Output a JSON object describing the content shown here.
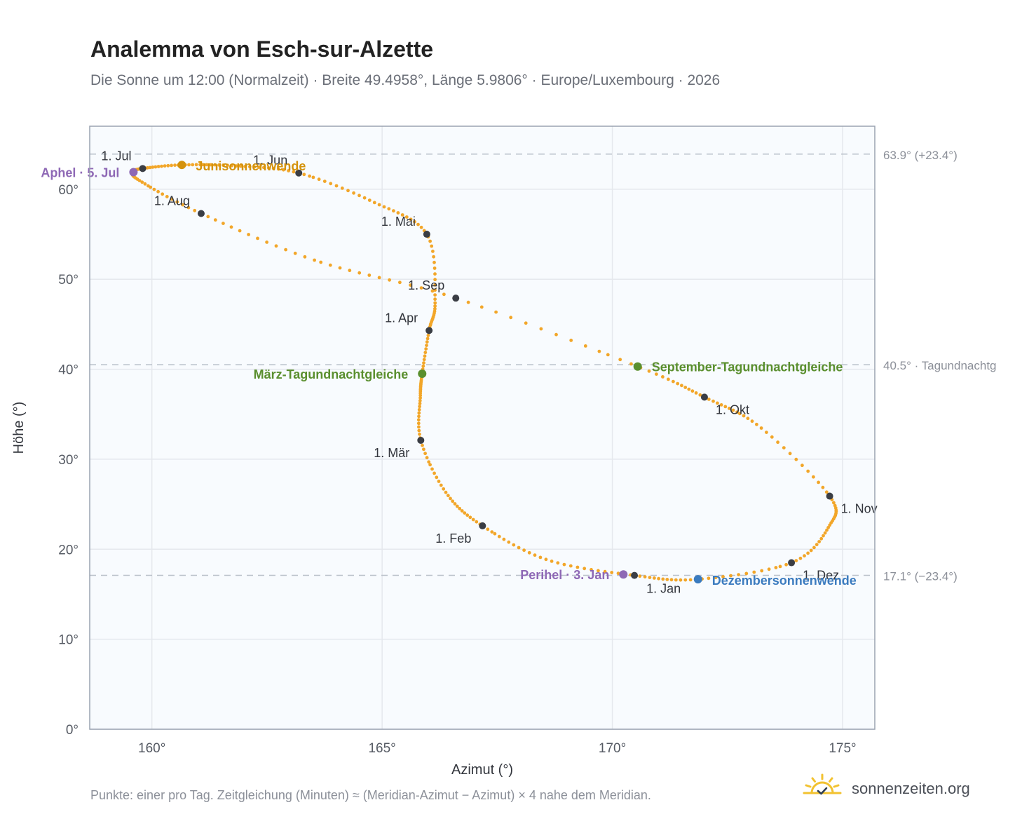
{
  "header": {
    "title": "Analemma von Esch-sur-Alzette",
    "subtitle": "Die Sonne um 12:00 (Normalzeit) · Breite 49.4958°, Länge 5.9806° · Europe/Luxembourg · 2026"
  },
  "footer": {
    "note": "Punkte: einer pro Tag. Zeitgleichung (Minuten) ≈ (Meridian-Azimut − Azimut) × 4 nahe dem Meridian.",
    "brand": "sonnenzeiten.org",
    "brand_icon": "sun-check-icon"
  },
  "colors": {
    "curve": "#f2a629",
    "month_point": "#3a3d44",
    "equinox": "#5a8f2e",
    "june_solstice": "#d4920c",
    "december_solstice": "#3b7bbf",
    "apsis": "#8e68b5",
    "grid": "#e5e8ed",
    "plot_bg": "#f8fbfe",
    "frame": "#9aa3b0",
    "ref_line": "#b9c0c9"
  },
  "chart_data": {
    "type": "scatter",
    "xlabel": "Azimut (°)",
    "ylabel": "Höhe (°)",
    "xlim": [
      158.65,
      175.7
    ],
    "ylim": [
      0,
      67
    ],
    "xticks": [
      {
        "value": 160,
        "label": "160°"
      },
      {
        "value": 165,
        "label": "165°"
      },
      {
        "value": 170,
        "label": "170°"
      },
      {
        "value": 175,
        "label": "175°"
      }
    ],
    "yticks": [
      {
        "value": 0,
        "label": "0°"
      },
      {
        "value": 10,
        "label": "10°"
      },
      {
        "value": 20,
        "label": "20°"
      },
      {
        "value": 30,
        "label": "30°"
      },
      {
        "value": 40,
        "label": "40°"
      },
      {
        "value": 50,
        "label": "50°"
      },
      {
        "value": 60,
        "label": "60°"
      }
    ],
    "grid": true,
    "reference_lines": [
      {
        "y": 63.9,
        "label": "63.9° (+23.4°)"
      },
      {
        "y": 40.5,
        "label": "40.5° · Tagundnachtg"
      },
      {
        "y": 17.1,
        "label": "17.1° (−23.4°)"
      }
    ],
    "path_anchors": [
      {
        "x": 170.48,
        "y": 17.09
      },
      {
        "x": 168.6,
        "y": 18.8
      },
      {
        "x": 167.18,
        "y": 22.6
      },
      {
        "x": 166.4,
        "y": 26.2
      },
      {
        "x": 165.84,
        "y": 32.1
      },
      {
        "x": 165.83,
        "y": 37.0
      },
      {
        "x": 165.87,
        "y": 39.5
      },
      {
        "x": 166.02,
        "y": 44.3
      },
      {
        "x": 166.15,
        "y": 47.5
      },
      {
        "x": 165.97,
        "y": 55.0
      },
      {
        "x": 164.8,
        "y": 58.6
      },
      {
        "x": 163.19,
        "y": 61.8
      },
      {
        "x": 161.8,
        "y": 62.6
      },
      {
        "x": 160.65,
        "y": 62.7
      },
      {
        "x": 159.8,
        "y": 62.3
      },
      {
        "x": 159.6,
        "y": 61.9
      },
      {
        "x": 159.75,
        "y": 60.9
      },
      {
        "x": 161.07,
        "y": 57.3
      },
      {
        "x": 163.6,
        "y": 52.0
      },
      {
        "x": 166.6,
        "y": 47.9
      },
      {
        "x": 170.55,
        "y": 40.3
      },
      {
        "x": 172.0,
        "y": 36.9
      },
      {
        "x": 173.2,
        "y": 33.6
      },
      {
        "x": 174.72,
        "y": 25.9
      },
      {
        "x": 174.7,
        "y": 22.5
      },
      {
        "x": 173.89,
        "y": 18.5
      },
      {
        "x": 171.86,
        "y": 16.66
      },
      {
        "x": 170.48,
        "y": 17.09
      }
    ],
    "month_points": [
      {
        "label": "1. Jan",
        "x": 170.48,
        "y": 17.09,
        "anchor": "start",
        "dx": 17,
        "dy": 25
      },
      {
        "label": "1. Feb",
        "x": 167.18,
        "y": 22.6,
        "anchor": "end",
        "dx": -16,
        "dy": 24
      },
      {
        "label": "1. Mär",
        "x": 165.84,
        "y": 32.1,
        "anchor": "end",
        "dx": -16,
        "dy": 24
      },
      {
        "label": "1. Apr",
        "x": 166.02,
        "y": 44.3,
        "anchor": "end",
        "dx": -16,
        "dy": -12
      },
      {
        "label": "1. Mai",
        "x": 165.97,
        "y": 55.0,
        "anchor": "end",
        "dx": -16,
        "dy": -12
      },
      {
        "label": "1. Jun",
        "x": 163.19,
        "y": 61.8,
        "anchor": "end",
        "dx": -16,
        "dy": -12
      },
      {
        "label": "1. Jul",
        "x": 159.8,
        "y": 62.3,
        "anchor": "end",
        "dx": -16,
        "dy": -12
      },
      {
        "label": "1. Aug",
        "x": 161.07,
        "y": 57.3,
        "anchor": "end",
        "dx": -16,
        "dy": -12
      },
      {
        "label": "1. Sep",
        "x": 166.6,
        "y": 47.9,
        "anchor": "end",
        "dx": -16,
        "dy": -12
      },
      {
        "label": "1. Okt",
        "x": 172.0,
        "y": 36.9,
        "anchor": "start",
        "dx": 16,
        "dy": 24
      },
      {
        "label": "1. Nov",
        "x": 174.72,
        "y": 25.9,
        "anchor": "start",
        "dx": 16,
        "dy": 24
      },
      {
        "label": "1. Dez",
        "x": 173.89,
        "y": 18.5,
        "anchor": "start",
        "dx": 16,
        "dy": 24
      }
    ],
    "events": [
      {
        "label": "Aphel · 5. Jul",
        "x": 159.6,
        "y": 61.9,
        "kind": "apsis",
        "anchor": "end",
        "dx": -20,
        "dy": 7
      },
      {
        "label": "Junisonnenwende",
        "x": 160.65,
        "y": 62.7,
        "kind": "june_solstice",
        "anchor": "start",
        "dx": 20,
        "dy": 8
      },
      {
        "label": "März-Tagundnachtgleiche",
        "x": 165.87,
        "y": 39.5,
        "kind": "equinox",
        "anchor": "end",
        "dx": -20,
        "dy": 7
      },
      {
        "label": "September-Tagundnachtgleiche",
        "x": 170.55,
        "y": 40.3,
        "kind": "equinox",
        "anchor": "start",
        "dx": 20,
        "dy": 7
      },
      {
        "label": "Perihel · 3. Jan",
        "x": 170.24,
        "y": 17.2,
        "kind": "apsis",
        "anchor": "end",
        "dx": -20,
        "dy": 7
      },
      {
        "label": "Dezembersonnenwende",
        "x": 171.86,
        "y": 16.66,
        "kind": "december_solstice",
        "anchor": "start",
        "dx": 20,
        "dy": 8
      }
    ]
  }
}
